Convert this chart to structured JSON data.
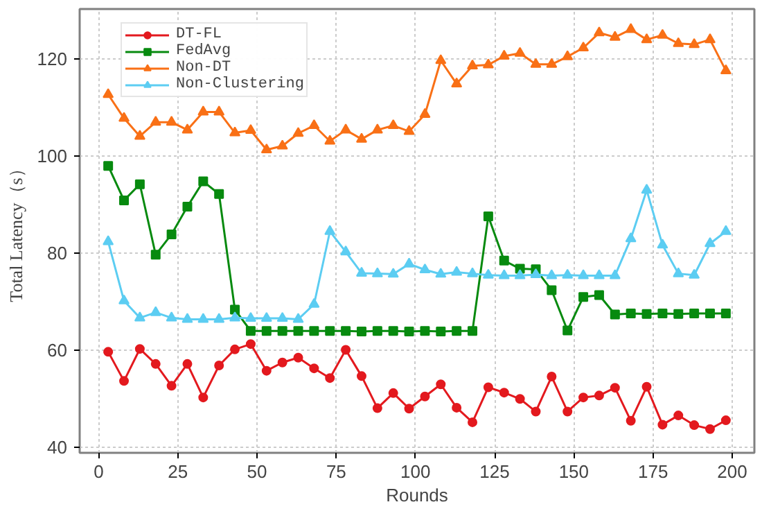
{
  "chart_data": {
    "type": "line",
    "xlabel": "Rounds",
    "ylabel": "Total Latency（s）",
    "x": [
      3,
      8,
      13,
      18,
      23,
      28,
      33,
      38,
      43,
      48,
      53,
      58,
      63,
      68,
      73,
      78,
      83,
      88,
      93,
      98,
      103,
      108,
      113,
      118,
      123,
      128,
      133,
      138,
      143,
      148,
      153,
      158,
      163,
      168,
      173,
      178,
      183,
      188,
      193,
      198
    ],
    "series": [
      {
        "name": "DT-FL",
        "color": "#e3191e",
        "marker": "circle",
        "values": [
          59.7,
          53.7,
          60.3,
          57.2,
          52.7,
          57.2,
          50.3,
          56.9,
          60.2,
          61.3,
          55.8,
          57.5,
          58.5,
          56.3,
          54.3,
          60.1,
          54.7,
          48.1,
          51.2,
          48,
          50.5,
          53,
          48.2,
          45.2,
          52.4,
          51.3,
          50,
          47.4,
          54.6,
          47.4,
          50.3,
          50.7,
          52.3,
          45.5,
          52.5,
          44.7,
          46.6,
          44.6,
          43.8,
          45.6
        ]
      },
      {
        "name": "FedAvg",
        "color": "#078a0f",
        "marker": "square",
        "values": [
          98,
          90.9,
          94.2,
          79.7,
          83.9,
          89.6,
          94.8,
          92.2,
          68.4,
          64,
          64,
          64,
          64,
          64,
          64,
          64,
          63.9,
          64,
          64,
          63.9,
          64,
          63.9,
          64,
          64,
          87.6,
          78.5,
          76.8,
          76.7,
          72.4,
          64.1,
          71,
          71.4,
          67.4,
          67.6,
          67.5,
          67.6,
          67.5,
          67.6,
          67.6,
          67.6
        ]
      },
      {
        "name": "Non-DT",
        "color": "#f97016",
        "marker": "triangle",
        "values": [
          112.7,
          107.8,
          104.1,
          107,
          107,
          105.4,
          109.1,
          109.1,
          104.8,
          105.3,
          101.3,
          102.1,
          104.7,
          106.3,
          103.1,
          105.4,
          103.5,
          105.4,
          106.3,
          105.1,
          108.6,
          119.7,
          114.9,
          118.6,
          118.8,
          120.6,
          121.2,
          118.9,
          118.9,
          120.5,
          122.3,
          125.4,
          124.5,
          126.1,
          124,
          124.9,
          123.2,
          123,
          124,
          117.6
        ]
      },
      {
        "name": "Non-Clustering",
        "color": "#5ccdf2",
        "marker": "triangle",
        "values": [
          82.4,
          70.2,
          66.7,
          67.8,
          66.7,
          66.4,
          66.4,
          66.4,
          66.7,
          66.6,
          66.6,
          66.6,
          66.4,
          69.5,
          84.5,
          80.3,
          75.9,
          75.8,
          75.7,
          77.8,
          76.6,
          75.7,
          76.1,
          75.8,
          75.5,
          75.4,
          75.4,
          75.6,
          75.4,
          75.5,
          75.4,
          75.4,
          75.4,
          83,
          93,
          81.7,
          75.8,
          75.5,
          82,
          84.5
        ]
      }
    ],
    "xlim": [
      -6,
      207
    ],
    "ylim": [
      38.9,
      130.3
    ],
    "xticks": [
      0,
      25,
      50,
      75,
      100,
      125,
      150,
      175,
      200
    ],
    "yticks": [
      40,
      60,
      80,
      100,
      120
    ],
    "grid": true,
    "legend": "top left",
    "line_style": "solid"
  }
}
